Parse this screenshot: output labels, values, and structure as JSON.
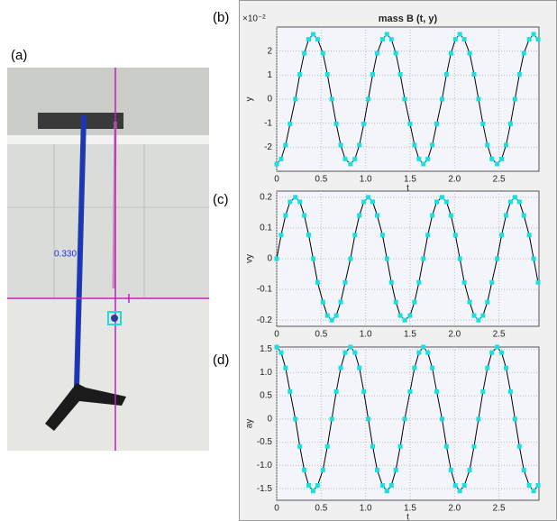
{
  "figure": {
    "panel_labels": [
      "(a)",
      "(b)",
      "(c)",
      "(d)"
    ],
    "photo_annotation": "0.330"
  },
  "chart_data": [
    {
      "type": "line",
      "title": "mass B (t, y)",
      "annotation": "×10⁻²",
      "x_label": "t",
      "y_label": "y",
      "color": "#000000",
      "marker_color": "#19e0e0",
      "grid": true,
      "x": [
        0,
        0.05,
        0.1,
        0.15,
        0.21,
        0.26,
        0.31,
        0.36,
        0.41,
        0.46,
        0.52,
        0.57,
        0.62,
        0.67,
        0.72,
        0.77,
        0.83,
        0.88,
        0.93,
        0.98,
        1.03,
        1.08,
        1.13,
        1.19,
        1.24,
        1.29,
        1.34,
        1.39,
        1.44,
        1.5,
        1.55,
        1.6,
        1.65,
        1.7,
        1.75,
        1.8,
        1.86,
        1.91,
        1.96,
        2.01,
        2.06,
        2.11,
        2.17,
        2.22,
        2.27,
        2.32,
        2.37,
        2.42,
        2.48,
        2.53,
        2.58,
        2.63,
        2.68,
        2.73,
        2.78,
        2.84,
        2.89,
        2.94
      ],
      "values": [
        -2.7,
        -2.49,
        -1.91,
        -1.03,
        0,
        1.03,
        1.91,
        2.49,
        2.7,
        2.49,
        1.91,
        1.03,
        0,
        -1.03,
        -1.91,
        -2.49,
        -2.7,
        -2.49,
        -1.91,
        -1.03,
        0,
        1.03,
        1.91,
        2.49,
        2.7,
        2.49,
        1.91,
        1.03,
        0,
        -1.03,
        -1.91,
        -2.49,
        -2.7,
        -2.49,
        -1.91,
        -1.03,
        0,
        1.03,
        1.91,
        2.49,
        2.7,
        2.49,
        1.91,
        1.03,
        0,
        -1.03,
        -1.91,
        -2.49,
        -2.7,
        -2.49,
        -1.91,
        -1.03,
        0,
        1.03,
        1.91,
        2.49,
        2.7,
        2.49
      ],
      "xlim": [
        0,
        2.95
      ],
      "ylim": [
        -3,
        3
      ],
      "xticks": [
        0,
        0.5,
        {
          "value": 1,
          "label": "1.0"
        },
        1.5,
        {
          "value": 2,
          "label": "2.0"
        },
        2.5
      ],
      "yticks": [
        -2,
        -1,
        0,
        1,
        2
      ]
    },
    {
      "type": "line",
      "y_label": "vy",
      "color": "#000000",
      "marker_color": "#19e0e0",
      "grid": true,
      "x": [
        0,
        0.05,
        0.1,
        0.15,
        0.21,
        0.26,
        0.31,
        0.36,
        0.41,
        0.46,
        0.52,
        0.57,
        0.62,
        0.67,
        0.72,
        0.77,
        0.83,
        0.88,
        0.93,
        0.98,
        1.03,
        1.08,
        1.13,
        1.19,
        1.24,
        1.29,
        1.34,
        1.39,
        1.44,
        1.5,
        1.55,
        1.6,
        1.65,
        1.7,
        1.75,
        1.8,
        1.86,
        1.91,
        1.96,
        2.01,
        2.06,
        2.11,
        2.17,
        2.22,
        2.27,
        2.32,
        2.37,
        2.42,
        2.48,
        2.53,
        2.58,
        2.63,
        2.68,
        2.73,
        2.78,
        2.84,
        2.89,
        2.94
      ],
      "values": [
        0,
        0.077,
        0.141,
        0.185,
        0.2,
        0.185,
        0.141,
        0.077,
        0,
        -0.077,
        -0.141,
        -0.185,
        -0.2,
        -0.185,
        -0.141,
        -0.077,
        0,
        0.077,
        0.141,
        0.185,
        0.2,
        0.185,
        0.141,
        0.077,
        0,
        -0.077,
        -0.141,
        -0.185,
        -0.2,
        -0.185,
        -0.141,
        -0.077,
        0,
        0.077,
        0.141,
        0.185,
        0.2,
        0.185,
        0.141,
        0.077,
        0,
        -0.077,
        -0.141,
        -0.185,
        -0.2,
        -0.185,
        -0.141,
        -0.077,
        0,
        0.077,
        0.141,
        0.185,
        0.2,
        0.185,
        0.141,
        0.077,
        0,
        -0.077
      ],
      "xlim": [
        0,
        2.95
      ],
      "ylim": [
        -0.22,
        0.22
      ],
      "xticks": [
        0,
        0.5,
        {
          "value": 1,
          "label": "1.0"
        },
        1.5,
        {
          "value": 2,
          "label": "2.0"
        },
        2.5
      ],
      "yticks": [
        -0.2,
        -0.1,
        0,
        0.1,
        0.2
      ]
    },
    {
      "type": "line",
      "x_label": "t",
      "y_label": "ay",
      "color": "#000000",
      "marker_color": "#19e0e0",
      "grid": true,
      "x": [
        0,
        0.05,
        0.1,
        0.15,
        0.21,
        0.26,
        0.31,
        0.36,
        0.41,
        0.46,
        0.52,
        0.57,
        0.62,
        0.67,
        0.72,
        0.77,
        0.83,
        0.88,
        0.93,
        0.98,
        1.03,
        1.08,
        1.13,
        1.19,
        1.24,
        1.29,
        1.34,
        1.39,
        1.44,
        1.5,
        1.55,
        1.6,
        1.65,
        1.7,
        1.75,
        1.8,
        1.86,
        1.91,
        1.96,
        2.01,
        2.06,
        2.11,
        2.17,
        2.22,
        2.27,
        2.32,
        2.37,
        2.42,
        2.48,
        2.53,
        2.58,
        2.63,
        2.68,
        2.73,
        2.78,
        2.84,
        2.89,
        2.94
      ],
      "values": [
        1.55,
        1.43,
        1.1,
        0.59,
        0,
        -0.59,
        -1.1,
        -1.43,
        -1.55,
        -1.43,
        -1.1,
        -0.59,
        0,
        0.59,
        1.1,
        1.43,
        1.55,
        1.43,
        1.1,
        0.59,
        0,
        -0.59,
        -1.1,
        -1.43,
        -1.55,
        -1.43,
        -1.1,
        -0.59,
        0,
        0.59,
        1.1,
        1.43,
        1.55,
        1.43,
        1.1,
        0.59,
        0,
        -0.59,
        -1.1,
        -1.43,
        -1.55,
        -1.43,
        -1.1,
        -0.59,
        0,
        0.59,
        1.1,
        1.43,
        1.55,
        1.43,
        1.1,
        0.59,
        0,
        -0.59,
        -1.1,
        -1.43,
        -1.55,
        -1.43
      ],
      "xlim": [
        0,
        2.95
      ],
      "ylim": [
        -1.75,
        1.55
      ],
      "xticks": [
        0,
        0.5,
        {
          "value": 1,
          "label": "1.0"
        },
        1.5,
        {
          "value": 2,
          "label": "2.0"
        },
        2.5
      ],
      "yticks": [
        -1.5,
        {
          "value": -1,
          "label": "-1.0"
        },
        -0.5,
        0,
        0.5,
        {
          "value": 1,
          "label": "1.0"
        },
        1.5
      ]
    }
  ]
}
